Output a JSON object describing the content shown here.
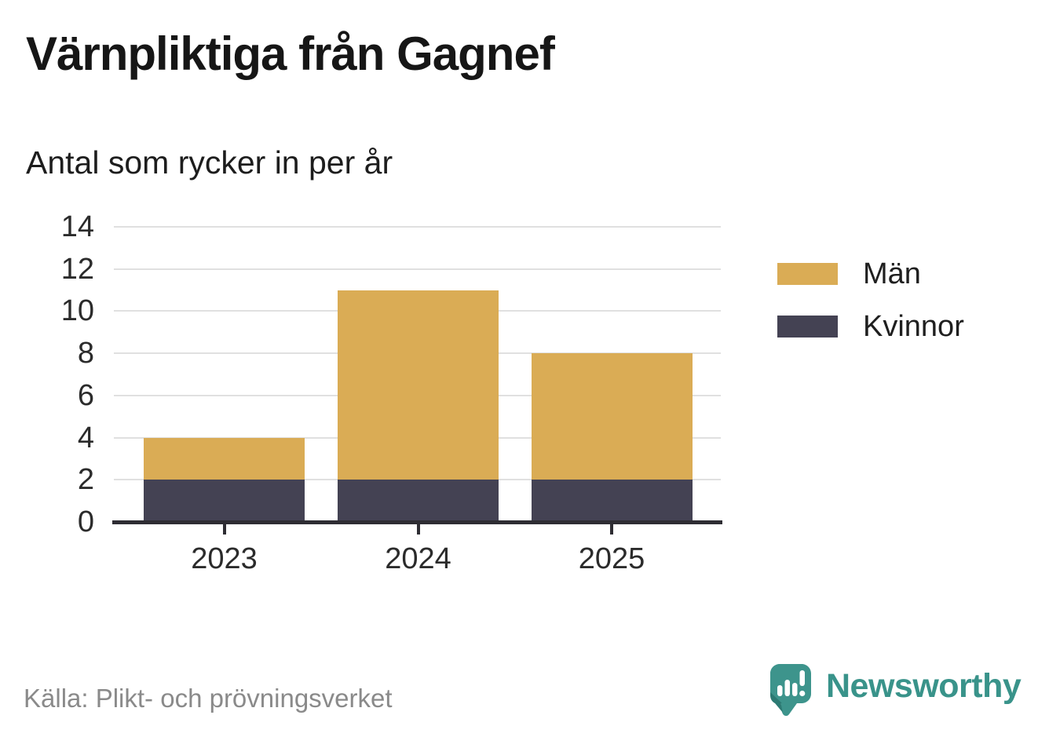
{
  "chart_data": {
    "type": "bar",
    "stacked": true,
    "title": "Värnpliktiga från Gagnef",
    "subtitle": "Antal som rycker in per år",
    "categories": [
      "2023",
      "2024",
      "2025"
    ],
    "series": [
      {
        "name": "Män",
        "color": "#DAAC55",
        "values": [
          2,
          9,
          6
        ]
      },
      {
        "name": "Kvinnor",
        "color": "#444253",
        "values": [
          2,
          2,
          2
        ]
      }
    ],
    "stack_order_bottom_to_top": [
      "Kvinnor",
      "Män"
    ],
    "stacked_totals": [
      4,
      11,
      8
    ],
    "xlabel": "",
    "ylabel": "",
    "ylim": [
      0,
      14
    ],
    "yticks": [
      0,
      2,
      4,
      6,
      8,
      10,
      12,
      14
    ],
    "grid": true,
    "legend_position": "right"
  },
  "footer": {
    "source": "Källa: Plikt- och prövningsverket",
    "brand": "Newsworthy"
  },
  "colors": {
    "accent_gold": "#DAAC55",
    "accent_dark": "#444253",
    "brand_teal": "#39938a",
    "grid": "#e0e0e0",
    "axis": "#2e2d33",
    "title_text": "#161616",
    "tick_text": "#2b2b2b",
    "muted_text": "#8a8a8a"
  }
}
